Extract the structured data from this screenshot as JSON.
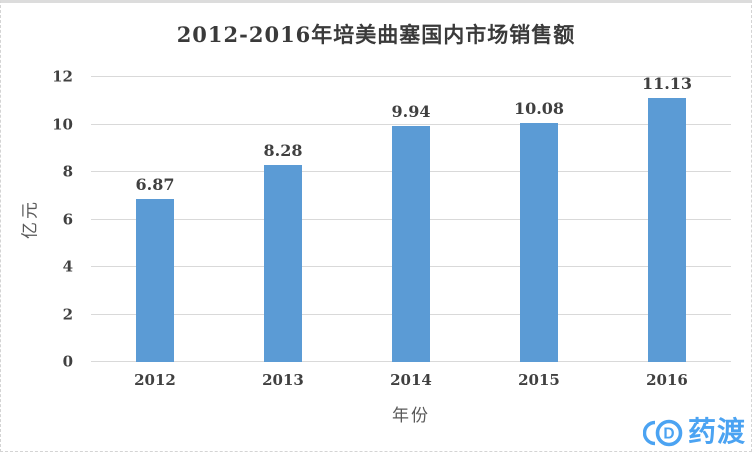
{
  "page": {
    "background": "#ffffff",
    "border_color": "#d9d9d9"
  },
  "chart_data": {
    "type": "bar",
    "title": "2012-2016年培美曲塞国内市场销售额",
    "categories": [
      "2012",
      "2013",
      "2014",
      "2015",
      "2016"
    ],
    "values": [
      6.87,
      8.28,
      9.94,
      10.08,
      11.13
    ],
    "value_labels": [
      "6.87",
      "8.28",
      "9.94",
      "10.08",
      "11.13"
    ],
    "xlabel": "年份",
    "ylabel": "亿元",
    "ylim": [
      0,
      12
    ],
    "yticks": [
      0,
      2,
      4,
      6,
      8,
      10,
      12
    ],
    "grid": "horizontal",
    "legend": "none",
    "bar_color": "#5B9BD5",
    "gridline_color": "#D9D9D9",
    "label_color": "#404040",
    "axis_title_color": "#595959"
  },
  "watermark": {
    "icon": "yaodu-logo",
    "text": "药渡",
    "color": "#4BA3F2"
  }
}
